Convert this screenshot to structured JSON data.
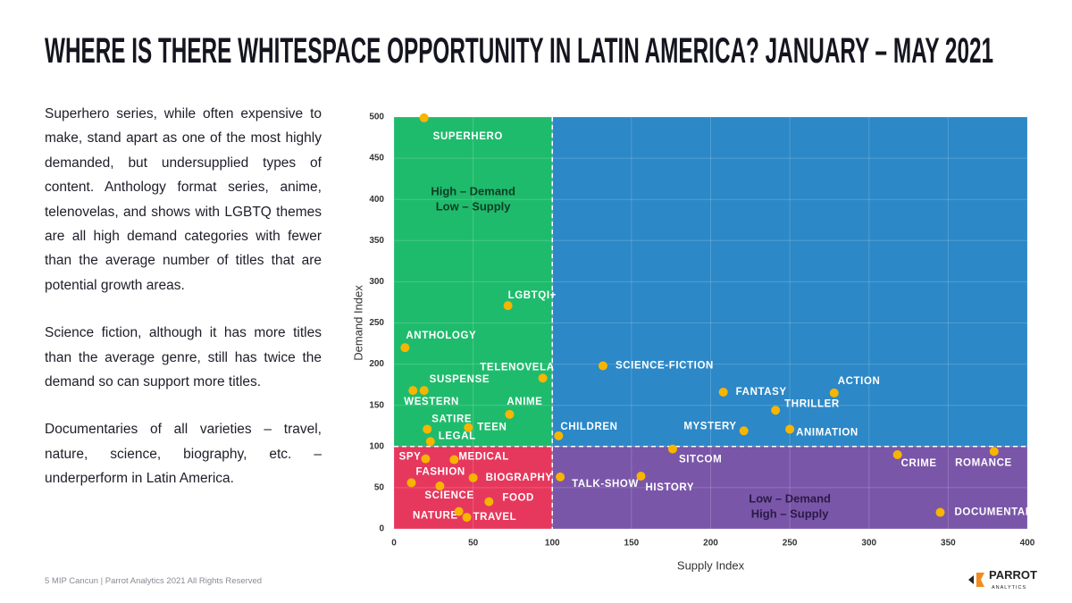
{
  "chart_data": {
    "type": "scatter",
    "title": "WHERE IS THERE WHITESPACE OPPORTUNITY IN LATIN AMERICA? JANUARY – MAY 2021",
    "x_label": "Supply Index",
    "y_label": "Demand Index",
    "xlim": [
      0,
      400
    ],
    "ylim": [
      0,
      500
    ],
    "xticks": [
      0,
      50,
      100,
      150,
      200,
      250,
      300,
      350,
      400
    ],
    "yticks": [
      0,
      50,
      100,
      150,
      200,
      250,
      300,
      350,
      400,
      450,
      500
    ],
    "grid": true,
    "color": "#f7b500",
    "quadrant_split": {
      "x": 100,
      "y": 100
    },
    "quadrants": [
      {
        "color": "#1fbb6c",
        "label": [
          "High – Demand",
          "Low – Supply"
        ],
        "label_color": "#0f3d24"
      },
      {
        "color": "#2c88c7"
      },
      {
        "color": "#e6385d"
      },
      {
        "color": "#7a56a9",
        "label": [
          "Low – Demand",
          "High – Supply"
        ],
        "label_color": "#2a1a44"
      }
    ],
    "labels": [
      "SUPERHERO",
      "LGBTQI+",
      "ANTHOLOGY",
      "TELENOVELA",
      "SUSPENSE",
      "WESTERN",
      "SCIENCE-FICTION",
      "ANIME",
      "SATIRE",
      "TEEN",
      "LEGAL",
      "CHILDREN",
      "FANTASY",
      "ACTION",
      "THRILLER",
      "MYSTERY",
      "ANIMATION",
      "SITCOM",
      "CRIME",
      "ROMANCE",
      "SPY",
      "MEDICAL",
      "FASHION",
      "BIOGRAPHY",
      "TALK-SHOW",
      "HISTORY",
      "SCIENCE",
      "FOOD",
      "NATURE",
      "TRAVEL",
      "DOCUMENTARY"
    ],
    "x": [
      19,
      72,
      7,
      94,
      19,
      12,
      132,
      73,
      21,
      47,
      23,
      104,
      208,
      278,
      241,
      221,
      250,
      176,
      318,
      379,
      20,
      38,
      11,
      50,
      105,
      156,
      29,
      60,
      41,
      46,
      345
    ],
    "values": [
      499,
      271,
      220,
      183,
      168,
      168,
      198,
      139,
      121,
      123,
      106,
      113,
      166,
      165,
      144,
      119,
      121,
      97,
      90,
      94,
      85,
      84,
      56,
      62,
      63,
      64,
      52,
      33,
      21,
      14,
      20
    ]
  },
  "text": {
    "paragraphs": [
      "Superhero series, while often expensive to make, stand apart as one of the most highly demanded, but undersupplied types of content. Anthology format series, anime, telenovelas, and shows with LGBTQ themes are all high demand categories with fewer than the average number of titles that are potential growth areas.",
      "Science fiction, although it has more titles than the average genre, still has twice the demand so can support more titles.",
      "Documentaries of all varieties – travel, nature, science, biography, etc. – underperform in Latin America."
    ]
  },
  "footer": "5 MIP Cancun | Parrot Analytics 2021 All Rights Reserved",
  "logo": {
    "name": "PARROT",
    "subtitle": "ANALYTICS"
  }
}
